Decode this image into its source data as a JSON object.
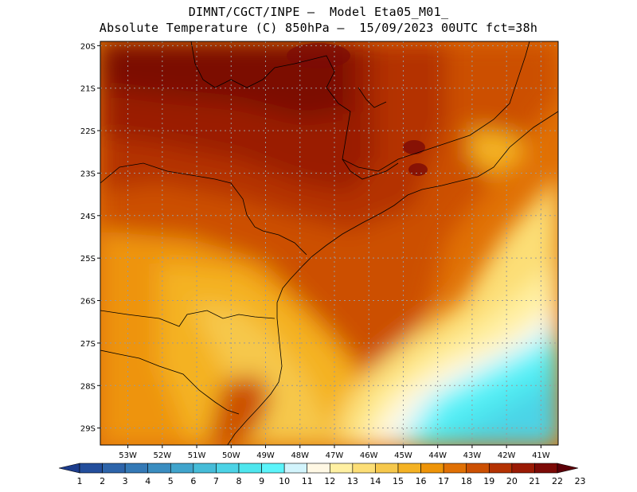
{
  "title_line1": "DIMNT/CGCT/INPE –  Model Eta05_M01_",
  "title_line2": "Absolute Temperature (C) 850hPa –  15/09/2023 00UTC fct=38h",
  "map": {
    "lon_range": [
      -53.8,
      -40.5
    ],
    "lat_range": [
      -29.4,
      -19.9
    ],
    "lat_ticks": [
      "20S",
      "21S",
      "22S",
      "23S",
      "24S",
      "25S",
      "26S",
      "27S",
      "28S",
      "29S"
    ],
    "lat_values": [
      -20,
      -21,
      -22,
      -23,
      -24,
      -25,
      -26,
      -27,
      -28,
      -29
    ],
    "lon_ticks": [
      "53W",
      "52W",
      "51W",
      "50W",
      "49W",
      "48W",
      "47W",
      "46W",
      "45W",
      "44W",
      "43W",
      "42W",
      "41W"
    ],
    "lon_values": [
      -53,
      -52,
      -51,
      -50,
      -49,
      -48,
      -47,
      -46,
      -45,
      -44,
      -43,
      -42,
      -41
    ],
    "grid": true
  },
  "colorbar": {
    "labels": [
      "1",
      "2",
      "3",
      "4",
      "5",
      "6",
      "7",
      "8",
      "9",
      "10",
      "11",
      "12",
      "13",
      "14",
      "15",
      "16",
      "17",
      "18",
      "19",
      "20",
      "21",
      "22",
      "23"
    ],
    "colors": [
      "#1c3c8c",
      "#234e9c",
      "#2d64aa",
      "#3479b6",
      "#3a8dc0",
      "#40a4cc",
      "#46bcd8",
      "#4cd3e6",
      "#4ee6ee",
      "#5cf4fa",
      "#d2f4fc",
      "#fff8e4",
      "#fff0a2",
      "#fcde76",
      "#f6c84c",
      "#f4b224",
      "#ee9408",
      "#e07004",
      "#cc5002",
      "#b43202",
      "#9a1a04",
      "#7c0a06",
      "#5c0008"
    ]
  }
}
